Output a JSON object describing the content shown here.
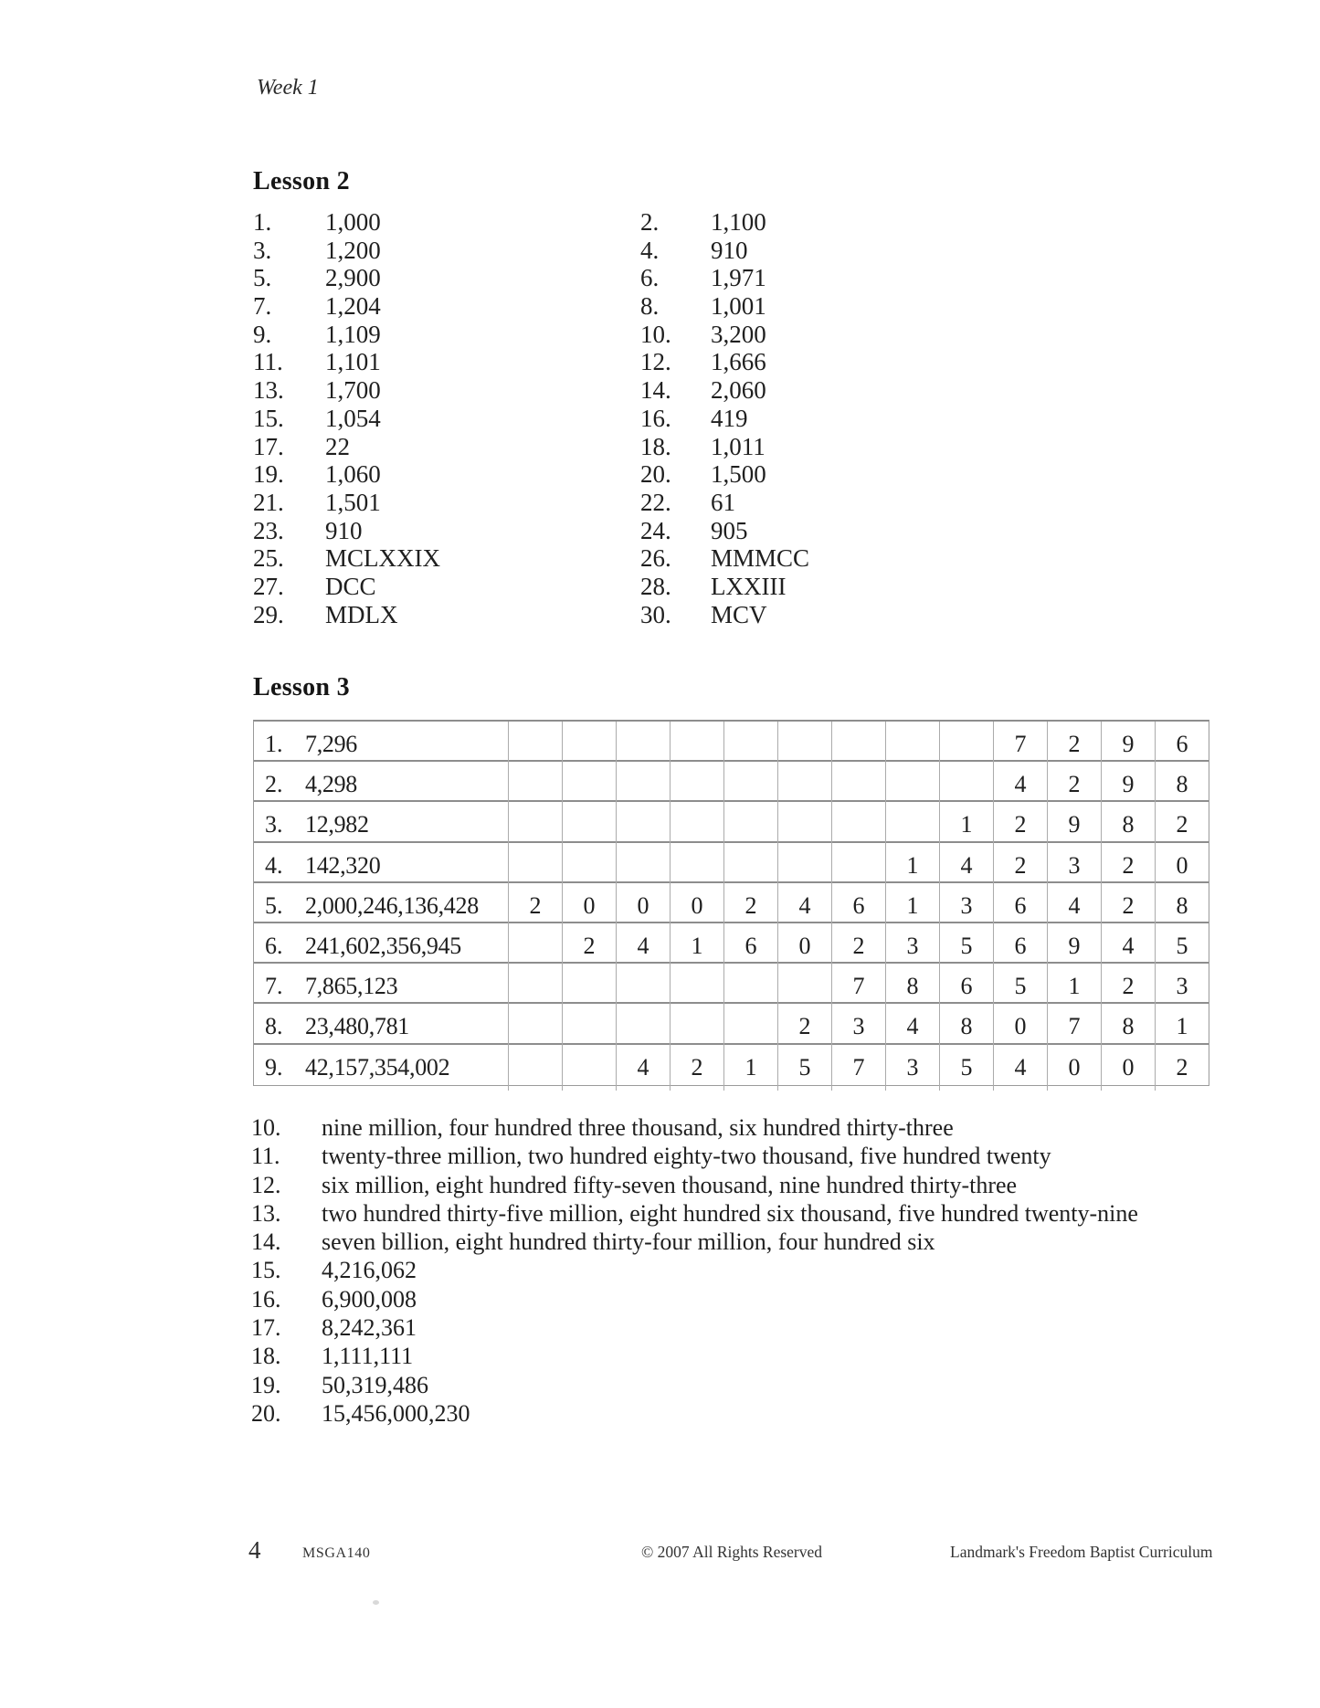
{
  "header": {
    "week_label": "Week 1"
  },
  "lesson2": {
    "title": "Lesson 2",
    "items": [
      {
        "num": "1.",
        "answer": "1,000"
      },
      {
        "num": "2.",
        "answer": "1,100"
      },
      {
        "num": "3.",
        "answer": "1,200"
      },
      {
        "num": "4.",
        "answer": "910"
      },
      {
        "num": "5.",
        "answer": "2,900"
      },
      {
        "num": "6.",
        "answer": "1,971"
      },
      {
        "num": "7.",
        "answer": "1,204"
      },
      {
        "num": "8.",
        "answer": "1,001"
      },
      {
        "num": "9.",
        "answer": "1,109"
      },
      {
        "num": "10.",
        "answer": "3,200"
      },
      {
        "num": "11.",
        "answer": "1,101"
      },
      {
        "num": "12.",
        "answer": "1,666"
      },
      {
        "num": "13.",
        "answer": "1,700"
      },
      {
        "num": "14.",
        "answer": "2,060"
      },
      {
        "num": "15.",
        "answer": "1,054"
      },
      {
        "num": "16.",
        "answer": "419"
      },
      {
        "num": "17.",
        "answer": "22"
      },
      {
        "num": "18.",
        "answer": "1,011"
      },
      {
        "num": "19.",
        "answer": "1,060"
      },
      {
        "num": "20.",
        "answer": "1,500"
      },
      {
        "num": "21.",
        "answer": "1,501"
      },
      {
        "num": "22.",
        "answer": "61"
      },
      {
        "num": "23.",
        "answer": "910"
      },
      {
        "num": "24.",
        "answer": "905"
      },
      {
        "num": "25.",
        "answer": "MCLXXIX"
      },
      {
        "num": "26.",
        "answer": "MMMCC"
      },
      {
        "num": "27.",
        "answer": "DCC"
      },
      {
        "num": "28.",
        "answer": "LXXIII"
      },
      {
        "num": "29.",
        "answer": "MDLX"
      },
      {
        "num": "30.",
        "answer": "MCV"
      }
    ]
  },
  "lesson3": {
    "title": "Lesson 3",
    "table": {
      "digit_column_count": 13,
      "rows": [
        {
          "num": "1.",
          "value": "7,296",
          "digits": [
            "7",
            "2",
            "9",
            "6"
          ]
        },
        {
          "num": "2.",
          "value": "4,298",
          "digits": [
            "4",
            "2",
            "9",
            "8"
          ]
        },
        {
          "num": "3.",
          "value": "12,982",
          "digits": [
            "1",
            "2",
            "9",
            "8",
            "2"
          ]
        },
        {
          "num": "4.",
          "value": "142,320",
          "digits": [
            "1",
            "4",
            "2",
            "3",
            "2",
            "0"
          ]
        },
        {
          "num": "5.",
          "value": "2,000,246,136,428",
          "digits": [
            "2",
            "0",
            "0",
            "0",
            "2",
            "4",
            "6",
            "1",
            "3",
            "6",
            "4",
            "2",
            "8"
          ]
        },
        {
          "num": "6.",
          "value": "241,602,356,945",
          "digits": [
            "2",
            "4",
            "1",
            "6",
            "0",
            "2",
            "3",
            "5",
            "6",
            "9",
            "4",
            "5"
          ]
        },
        {
          "num": "7.",
          "value": "7,865,123",
          "digits": [
            "7",
            "8",
            "6",
            "5",
            "1",
            "2",
            "3"
          ]
        },
        {
          "num": "8.",
          "value": "23,480,781",
          "digits": [
            "2",
            "3",
            "4",
            "8",
            "0",
            "7",
            "8",
            "1"
          ]
        },
        {
          "num": "9.",
          "value": "42,157,354,002",
          "digits": [
            "4",
            "2",
            "1",
            "5",
            "7",
            "3",
            "5",
            "4",
            "0",
            "0",
            "2"
          ]
        }
      ]
    },
    "items": [
      {
        "num": "10.",
        "answer": "nine million, four hundred three thousand, six hundred thirty-three"
      },
      {
        "num": "11.",
        "answer": "twenty-three million, two hundred eighty-two thousand, five hundred twenty"
      },
      {
        "num": "12.",
        "answer": "six million, eight hundred fifty-seven thousand, nine hundred thirty-three"
      },
      {
        "num": "13.",
        "answer": "two hundred thirty-five million, eight hundred six thousand, five hundred twenty-nine"
      },
      {
        "num": "14.",
        "answer": "seven billion, eight hundred thirty-four million, four hundred six"
      },
      {
        "num": "15.",
        "answer": "4,216,062"
      },
      {
        "num": "16.",
        "answer": "6,900,008"
      },
      {
        "num": "17.",
        "answer": "8,242,361"
      },
      {
        "num": "18.",
        "answer": "1,111,111"
      },
      {
        "num": "19.",
        "answer": "50,319,486"
      },
      {
        "num": "20.",
        "answer": "15,456,000,230"
      }
    ]
  },
  "footer": {
    "page_number": "4",
    "code": "MSGA140",
    "copyright": "© 2007 All Rights Reserved",
    "publisher": "Landmark's Freedom Baptist Curriculum"
  }
}
